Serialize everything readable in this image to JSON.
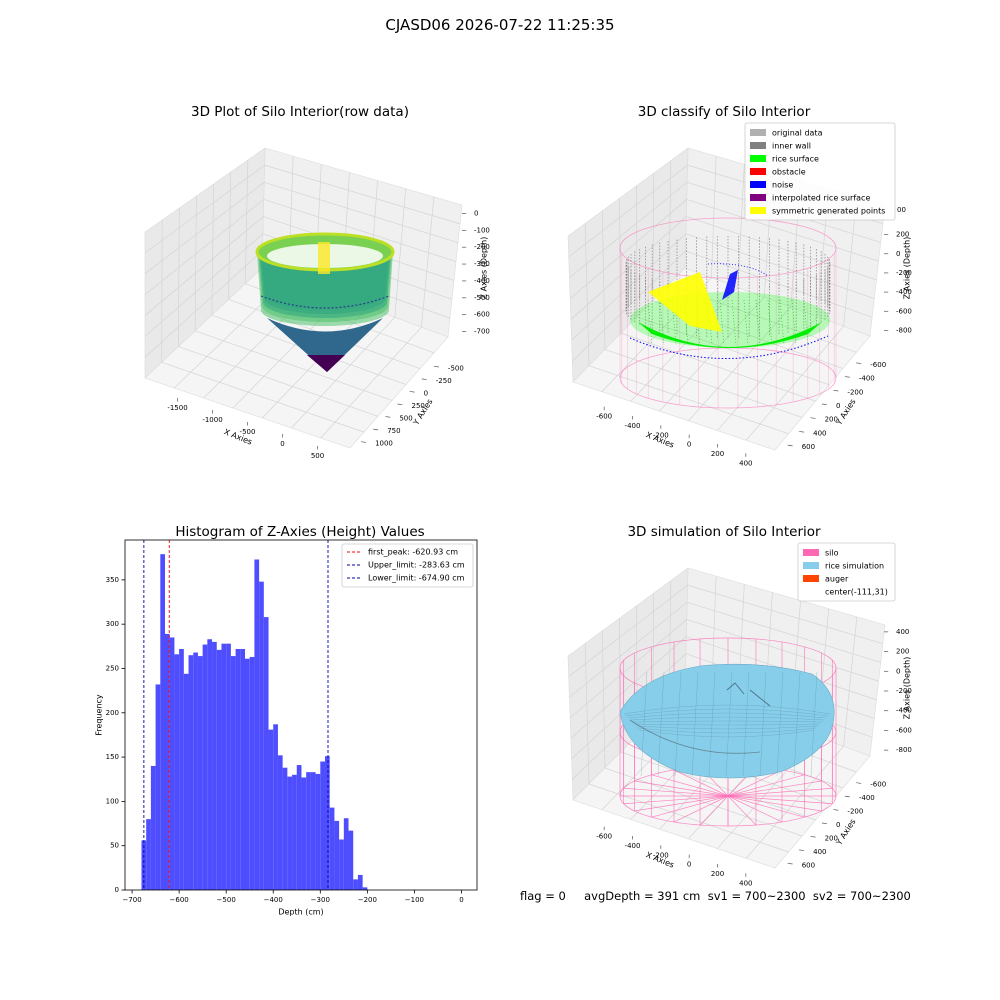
{
  "figure": {
    "suptitle": "CJASD06 2026-07-22 11:25:35",
    "status_line": "flag = 0     avgDepth = 391 cm  sv1 = 700~2300  sv2 = 700~2300"
  },
  "colors": {
    "hist_bar": "#4444ff",
    "first_peak": "#ff0000",
    "limit_lines": "#0000aa",
    "silo": "#ff69b4",
    "rice_simulation": "#87ceeb",
    "auger": "#ff4500"
  },
  "chart_data": [
    {
      "type": "scatter3d",
      "title": "3D Plot of Silo Interior(row data)",
      "xlabel": "X Axies",
      "ylabel": "Y Axies",
      "zlabel": "Z Axies (Depth)",
      "xticks": [
        "-1500",
        "-1000",
        "-500",
        "0",
        "500"
      ],
      "yticks": [
        "-500",
        "-250",
        "0",
        "250",
        "500",
        "750",
        "1000"
      ],
      "zticks": [
        "0",
        "-100",
        "-200",
        "-300",
        "-400",
        "-500",
        "-600",
        "-700"
      ],
      "colormap": "viridis"
    },
    {
      "type": "scatter3d",
      "title": "3D classify of Silo Interior",
      "xlabel": "X Axies",
      "ylabel": "Y Axies",
      "zlabel": "Z Axies (Depth)",
      "xticks": [
        "-600",
        "-400",
        "-200",
        "0",
        "200",
        "400"
      ],
      "yticks": [
        "-600",
        "-400",
        "-200",
        "0",
        "200",
        "400",
        "600"
      ],
      "zticks": [
        "200",
        "0",
        "-200",
        "-400",
        "-600",
        "-800"
      ],
      "zticks_top": [
        "00"
      ],
      "legend": [
        {
          "label": "original data",
          "color": "#b0b0b0"
        },
        {
          "label": "inner wall",
          "color": "#808080"
        },
        {
          "label": "rice surface",
          "color": "#00ff00"
        },
        {
          "label": "obstacle",
          "color": "#ff0000"
        },
        {
          "label": "noise",
          "color": "#0000ff"
        },
        {
          "label": "interpolated rice surface",
          "color": "#800080"
        },
        {
          "label": "symmetric generated points",
          "color": "#ffff00"
        }
      ]
    },
    {
      "type": "bar",
      "title": "Histogram of Z-Axies (Height) Values",
      "xlabel": "Depth (cm)",
      "ylabel": "Frequency",
      "xlim": [
        -715,
        33
      ],
      "ylim": [
        0,
        395
      ],
      "xticks": [
        -700,
        -600,
        -500,
        -400,
        -300,
        -200,
        -100,
        0
      ],
      "yticks": [
        0,
        50,
        100,
        150,
        200,
        250,
        300,
        350
      ],
      "bin_start": -680,
      "bin_width": 10,
      "values": [
        56,
        80,
        140,
        232,
        379,
        289,
        285,
        266,
        272,
        244,
        265,
        268,
        264,
        277,
        283,
        280,
        271,
        278,
        278,
        264,
        272,
        272,
        261,
        263,
        373,
        348,
        308,
        181,
        187,
        152,
        138,
        128,
        130,
        141,
        127,
        133,
        133,
        131,
        145,
        151,
        93,
        78,
        57,
        81,
        67,
        12,
        17,
        3
      ],
      "vlines": [
        {
          "label": "first_peak: -620.93 cm",
          "x": -620.93,
          "color": "#ff0000"
        },
        {
          "label": "Upper_limit: -283.63 cm",
          "x": -283.63,
          "color": "#0000aa"
        },
        {
          "label": "Lower_limit: -674.90 cm",
          "x": -674.9,
          "color": "#0000aa"
        }
      ],
      "legend_position": "top-right"
    },
    {
      "type": "surface3d",
      "title": "3D simulation of Silo Interior",
      "xlabel": "X Axies",
      "ylabel": "Y Axies",
      "zlabel": "Z Axies (Depth)",
      "xticks": [
        "-600",
        "-400",
        "-200",
        "0",
        "200",
        "400"
      ],
      "yticks": [
        "-600",
        "-400",
        "-200",
        "0",
        "200",
        "400",
        "600"
      ],
      "zticks": [
        "400",
        "200",
        "0",
        "-200",
        "-400",
        "-600",
        "-800"
      ],
      "legend": [
        {
          "label": "silo",
          "color": "#ff69b4"
        },
        {
          "label": "rice simulation",
          "color": "#87ceeb"
        },
        {
          "label": "auger",
          "color": "#ff4500"
        },
        {
          "label": "center(-111,31)",
          "color": ""
        }
      ]
    }
  ]
}
